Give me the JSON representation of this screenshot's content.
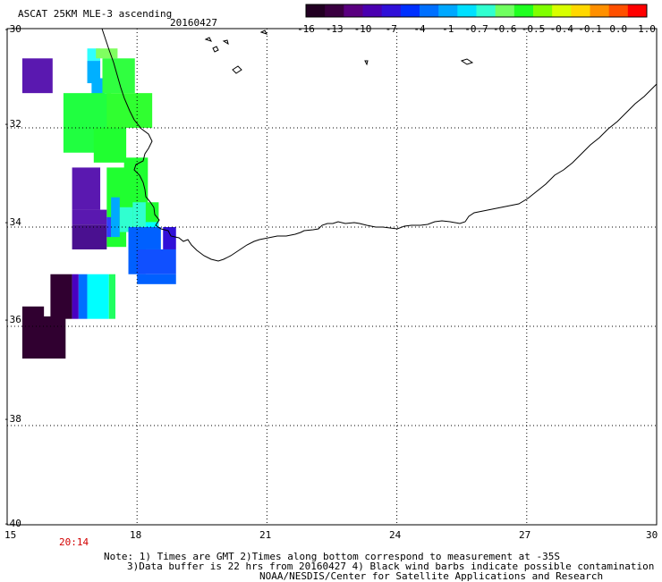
{
  "header": {
    "product": "ASCAT 25KM MLE-3 ascending",
    "date": "20160427"
  },
  "colorbar": {
    "stops": [
      "#220022",
      "#3a0040",
      "#5a0080",
      "#4a00b0",
      "#3010d8",
      "#0030ff",
      "#0070ff",
      "#00a8ff",
      "#00e0ff",
      "#30ffd0",
      "#70ff60",
      "#20ff20",
      "#80ff00",
      "#d8ff00",
      "#ffd800",
      "#ff9000",
      "#ff5000",
      "#ff0000"
    ],
    "tick_labels": [
      "-16",
      "-13",
      "-10",
      "-7",
      "-4",
      "-1",
      "-0.7",
      "-0.6",
      "-0.5",
      "-0.4",
      "-0.1",
      "0.0",
      "1.0"
    ]
  },
  "map": {
    "lon_range": [
      15,
      30
    ],
    "lat_range": [
      -40,
      -30
    ],
    "lat_ticks": [
      "-30",
      "-32",
      "-34",
      "-36",
      "-38",
      "-40"
    ],
    "lon_ticks": [
      "15",
      "18",
      "21",
      "24",
      "27",
      "30"
    ],
    "pass_time": "20:14",
    "cells": [
      {
        "lon": 15.35,
        "lat": -30.6,
        "w": 0.7,
        "h": 0.7,
        "color": "#5a18b0"
      },
      {
        "lon": 16.85,
        "lat": -30.4,
        "w": 0.3,
        "h": 0.25,
        "color": "#30ffff"
      },
      {
        "lon": 16.85,
        "lat": -30.65,
        "w": 0.3,
        "h": 0.45,
        "color": "#00b0ff"
      },
      {
        "lon": 16.95,
        "lat": -31.0,
        "w": 0.3,
        "h": 0.35,
        "color": "#00b0ff"
      },
      {
        "lon": 17.05,
        "lat": -30.4,
        "w": 0.5,
        "h": 0.2,
        "color": "#80ff60"
      },
      {
        "lon": 17.2,
        "lat": -30.6,
        "w": 0.75,
        "h": 0.7,
        "color": "#30ff40"
      },
      {
        "lon": 16.3,
        "lat": -31.3,
        "w": 1.1,
        "h": 1.2,
        "color": "#20ff40"
      },
      {
        "lon": 17.3,
        "lat": -31.3,
        "w": 1.05,
        "h": 0.7,
        "color": "#30ff30"
      },
      {
        "lon": 17.0,
        "lat": -32.0,
        "w": 0.75,
        "h": 0.7,
        "color": "#20ff30"
      },
      {
        "lon": 17.7,
        "lat": -32.6,
        "w": 0.55,
        "h": 1.4,
        "color": "#20ff30"
      },
      {
        "lon": 17.3,
        "lat": -32.8,
        "w": 0.45,
        "h": 1.6,
        "color": "#20ff30"
      },
      {
        "lon": 16.5,
        "lat": -32.8,
        "w": 0.65,
        "h": 0.85,
        "color": "#5a18b0"
      },
      {
        "lon": 16.5,
        "lat": -33.65,
        "w": 0.8,
        "h": 0.3,
        "color": "#5a18b0"
      },
      {
        "lon": 16.5,
        "lat": -33.95,
        "w": 0.8,
        "h": 0.5,
        "color": "#4a1090"
      },
      {
        "lon": 17.3,
        "lat": -33.8,
        "w": 0.1,
        "h": 0.4,
        "color": "#3040ff"
      },
      {
        "lon": 17.4,
        "lat": -33.4,
        "w": 0.2,
        "h": 0.8,
        "color": "#00a8ff"
      },
      {
        "lon": 17.6,
        "lat": -33.6,
        "w": 0.3,
        "h": 0.5,
        "color": "#30ffd0"
      },
      {
        "lon": 17.9,
        "lat": -33.5,
        "w": 0.35,
        "h": 0.5,
        "color": "#30ffd0"
      },
      {
        "lon": 18.2,
        "lat": -33.5,
        "w": 0.3,
        "h": 0.4,
        "color": "#20ff30"
      },
      {
        "lon": 18.2,
        "lat": -33.9,
        "w": 0.3,
        "h": 0.35,
        "color": "#00ffff"
      },
      {
        "lon": 17.8,
        "lat": -34.0,
        "w": 0.75,
        "h": 0.45,
        "color": "#0060ff"
      },
      {
        "lon": 17.8,
        "lat": -34.4,
        "w": 0.4,
        "h": 0.55,
        "color": "#0060ff"
      },
      {
        "lon": 18.0,
        "lat": -34.45,
        "w": 0.9,
        "h": 0.5,
        "color": "#1050ff"
      },
      {
        "lon": 18.0,
        "lat": -34.95,
        "w": 0.9,
        "h": 0.2,
        "color": "#0060ff"
      },
      {
        "lon": 18.6,
        "lat": -34.0,
        "w": 0.3,
        "h": 0.45,
        "color": "#3010d8"
      },
      {
        "lon": 16.0,
        "lat": -34.95,
        "w": 0.5,
        "h": 0.9,
        "color": "#300030"
      },
      {
        "lon": 16.5,
        "lat": -34.95,
        "w": 0.15,
        "h": 0.9,
        "color": "#4a00c0"
      },
      {
        "lon": 16.65,
        "lat": -34.95,
        "w": 0.2,
        "h": 0.9,
        "color": "#0070ff"
      },
      {
        "lon": 16.85,
        "lat": -34.95,
        "w": 0.5,
        "h": 0.9,
        "color": "#00ffff"
      },
      {
        "lon": 17.35,
        "lat": -34.95,
        "w": 0.15,
        "h": 0.9,
        "color": "#20ff60"
      },
      {
        "lon": 15.35,
        "lat": -35.6,
        "w": 0.5,
        "h": 0.3,
        "color": "#300030"
      },
      {
        "lon": 15.35,
        "lat": -35.8,
        "w": 1.0,
        "h": 0.85,
        "color": "#300030"
      }
    ]
  },
  "notes": [
    "Note: 1) Times are GMT 2)Times along bottom correspond to measurement at -35S",
    "3)Data buffer is 22 hrs from 20160427 4) Black wind barbs indicate possible contamination",
    "NOAA/NESDIS/Center for Satellite Applications and Research"
  ]
}
